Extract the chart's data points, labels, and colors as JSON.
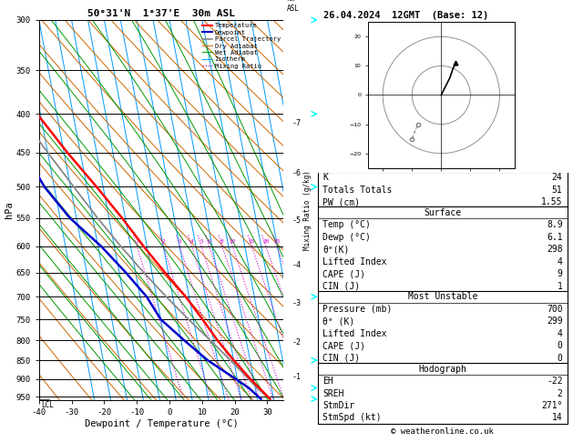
{
  "title_left": "50°31'N  1°37'E  30m ASL",
  "title_right": "26.04.2024  12GMT  (Base: 12)",
  "xlabel": "Dewpoint / Temperature (°C)",
  "ylabel_left": "hPa",
  "pressure_levels": [
    300,
    350,
    400,
    450,
    500,
    550,
    600,
    650,
    700,
    750,
    800,
    850,
    900,
    950
  ],
  "temp_range": [
    -40,
    35
  ],
  "skew_factor": 22.0,
  "p_min": 300,
  "p_max": 960,
  "temp_profile": {
    "pressure": [
      957,
      925,
      900,
      850,
      800,
      750,
      700,
      650,
      600,
      550,
      500,
      450,
      400,
      350,
      300
    ],
    "temp": [
      8.9,
      6.2,
      4.0,
      0.0,
      -3.8,
      -7.2,
      -11.0,
      -16.0,
      -21.0,
      -26.0,
      -32.0,
      -39.0,
      -46.0,
      -54.0,
      -59.0
    ]
  },
  "dewp_profile": {
    "pressure": [
      957,
      925,
      900,
      850,
      800,
      750,
      700,
      650,
      600,
      550,
      500,
      450,
      400,
      350,
      300
    ],
    "temp": [
      6.1,
      3.0,
      -0.5,
      -8.0,
      -14.0,
      -20.0,
      -23.0,
      -28.0,
      -34.0,
      -42.0,
      -48.0,
      -52.0,
      -56.0,
      -62.0,
      -65.0
    ]
  },
  "parcel_profile": {
    "pressure": [
      957,
      925,
      900,
      850,
      800,
      750,
      700,
      650,
      600,
      550,
      500,
      450,
      400,
      350,
      300
    ],
    "temp": [
      8.9,
      5.5,
      3.5,
      -1.0,
      -6.0,
      -11.5,
      -17.0,
      -22.5,
      -28.0,
      -33.5,
      -39.0,
      -45.0,
      -51.5,
      -58.0,
      -63.0
    ]
  },
  "lcl_pressure": 958,
  "mixing_ratio_values": [
    1,
    2,
    3,
    4,
    5,
    6,
    8,
    10,
    15,
    20,
    25
  ],
  "mixing_ratio_label_pressure": 600,
  "km_ticks": [
    1,
    2,
    3,
    4,
    5,
    6,
    7
  ],
  "km_pressures": [
    895,
    805,
    715,
    635,
    555,
    480,
    412
  ],
  "legend_items": [
    {
      "label": "Temperature",
      "color": "#ff0000",
      "ls": "-",
      "lw": 1.5
    },
    {
      "label": "Dewpoint",
      "color": "#0000cc",
      "ls": "-",
      "lw": 1.5
    },
    {
      "label": "Parcel Trajectory",
      "color": "#888888",
      "ls": "-",
      "lw": 1.2
    },
    {
      "label": "Dry Adiabat",
      "color": "#cc6600",
      "ls": "-",
      "lw": 0.7
    },
    {
      "label": "Wet Adiabat",
      "color": "#009900",
      "ls": "-",
      "lw": 0.7
    },
    {
      "label": "Isotherm",
      "color": "#0099ff",
      "ls": "-",
      "lw": 0.7
    },
    {
      "label": "Mixing Ratio",
      "color": "#cc00cc",
      "ls": ":",
      "lw": 0.9
    }
  ],
  "info_K": 24,
  "info_TT": 51,
  "info_PW": "1.55",
  "surf_temp": "8.9",
  "surf_dewp": "6.1",
  "surf_thetae": "298",
  "surf_li": "4",
  "surf_cape": "9",
  "surf_cin": "1",
  "mu_pres": "700",
  "mu_thetae": "299",
  "mu_li": "4",
  "mu_cape": "0",
  "mu_cin": "0",
  "hodo_eh": "-22",
  "hodo_sreh": "2",
  "hodo_stmdir": "271°",
  "hodo_stmspd": "14",
  "copyright": "© weatheronline.co.uk",
  "isotherm_color": "#0099ff",
  "dry_adiabat_color": "#cc6600",
  "wet_adiabat_color": "#009900",
  "mix_ratio_color": "#cc00cc",
  "wind_barb_pressures": [
    300,
    400,
    500,
    700,
    850,
    925,
    957
  ],
  "hodo_u": [
    0,
    1,
    2,
    3,
    4,
    5
  ],
  "hodo_v": [
    0,
    2,
    4,
    6,
    9,
    11
  ],
  "hodo_u_gray": [
    -10,
    -8
  ],
  "hodo_v_gray": [
    -15,
    -10
  ]
}
